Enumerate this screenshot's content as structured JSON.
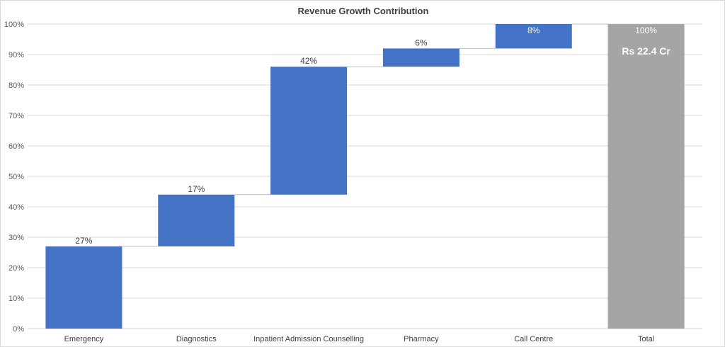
{
  "chart_data": {
    "type": "bar",
    "subtype": "waterfall",
    "title": "Revenue Growth Contribution",
    "xlabel": "",
    "ylabel": "",
    "ylim": [
      0,
      100
    ],
    "y_ticks": [
      "0%",
      "10%",
      "20%",
      "30%",
      "40%",
      "50%",
      "60%",
      "70%",
      "80%",
      "90%",
      "100%"
    ],
    "grid": true,
    "categories": [
      "Emergency",
      "Diagnostics",
      "Inpatient Admission Counselling",
      "Pharmacy",
      "Call Centre",
      "Total"
    ],
    "values": [
      27,
      17,
      42,
      6,
      8,
      100
    ],
    "data_labels": [
      "27%",
      "17%",
      "42%",
      "6%",
      "8%",
      "100%"
    ],
    "total_annotation": "Rs 22.4 Cr",
    "colors": {
      "increase": "#4472c4",
      "total": "#a5a5a5",
      "grid": "#d9d9d9",
      "connector": "#bfbfbf"
    }
  }
}
